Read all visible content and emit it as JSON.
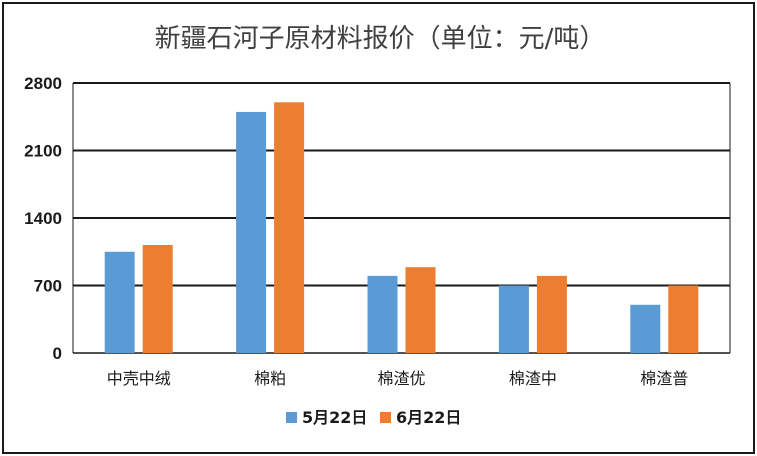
{
  "chart_data": {
    "type": "bar",
    "title": "新疆石河子原材料报价（单位：元/吨）",
    "categories": [
      "中壳中绒",
      "棉粕",
      "棉渣优",
      "棉渣中",
      "棉渣普"
    ],
    "series": [
      {
        "name": "5月22日",
        "color": "#5b9bd5",
        "values": [
          1050,
          2500,
          800,
          700,
          500
        ]
      },
      {
        "name": "6月22日",
        "color": "#ed7d31",
        "values": [
          1120,
          2600,
          890,
          800,
          700
        ]
      }
    ],
    "yticks": [
      "0",
      "700",
      "1400",
      "2100",
      "2800"
    ],
    "ylim": [
      0,
      2800
    ],
    "grid": true,
    "legend": "bottom"
  }
}
